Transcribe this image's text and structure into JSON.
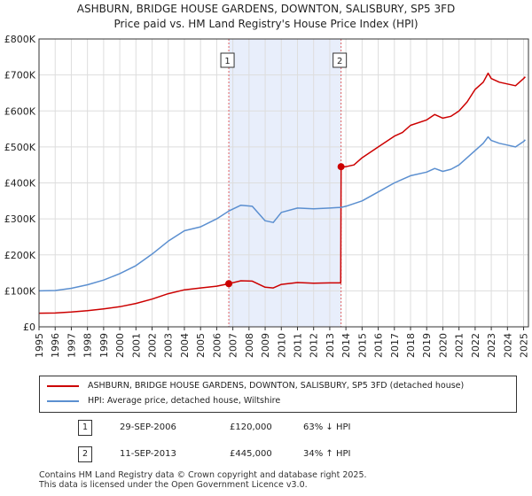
{
  "title_line1": "ASHBURN, BRIDGE HOUSE GARDENS, DOWNTON, SALISBURY, SP5 3FD",
  "title_line2": "Price paid vs. HM Land Registry's House Price Index (HPI)",
  "chart_data": {
    "type": "line",
    "title": "ASHBURN, BRIDGE HOUSE GARDENS, DOWNTON, SALISBURY, SP5 3FD",
    "subtitle": "Price paid vs. HM Land Registry's House Price Index (HPI)",
    "xlim": [
      1995,
      2025.3
    ],
    "ylim": [
      0,
      800000
    ],
    "y_ticks": [
      0,
      100000,
      200000,
      300000,
      400000,
      500000,
      600000,
      700000,
      800000
    ],
    "y_tick_labels": [
      "£0",
      "£100K",
      "£200K",
      "£300K",
      "£400K",
      "£500K",
      "£600K",
      "£700K",
      "£800K"
    ],
    "x_ticks": [
      1995,
      1996,
      1997,
      1998,
      1999,
      2000,
      2001,
      2002,
      2003,
      2004,
      2005,
      2006,
      2007,
      2008,
      2009,
      2010,
      2011,
      2012,
      2013,
      2014,
      2015,
      2016,
      2017,
      2018,
      2019,
      2020,
      2021,
      2022,
      2023,
      2024,
      2025
    ],
    "x_tick_labels": [
      "1995",
      "1996",
      "1997",
      "1998",
      "1999",
      "2000",
      "2001",
      "2002",
      "2003",
      "2004",
      "2005",
      "2006",
      "2007",
      "2008",
      "2009",
      "2010",
      "2011",
      "2012",
      "2013",
      "2014",
      "2015",
      "2016",
      "2017",
      "2018",
      "2019",
      "2020",
      "2021",
      "2022",
      "2023",
      "2024",
      "2025"
    ],
    "grid": true,
    "shaded_region": [
      2006.75,
      2013.7
    ],
    "series": [
      {
        "name": "ASHBURN, BRIDGE HOUSE GARDENS, DOWNTON, SALISBURY, SP5 3FD (detached house)",
        "color": "#cc0000",
        "x": [
          1995,
          1996,
          1997,
          1998,
          1999,
          2000,
          2001,
          2002,
          2003,
          2004,
          2005,
          2006,
          2006.75,
          2007.5,
          2008.2,
          2009,
          2009.5,
          2010,
          2011,
          2012,
          2013,
          2013.68,
          2013.7,
          2014,
          2014.5,
          2015,
          2016,
          2017,
          2017.5,
          2018,
          2019,
          2019.5,
          2020,
          2020.5,
          2021,
          2021.5,
          2022,
          2022.5,
          2022.8,
          2023,
          2023.5,
          2024,
          2024.5,
          2025,
          2025.1
        ],
        "values": [
          38000,
          38500,
          41000,
          45000,
          50000,
          56000,
          65000,
          77000,
          92000,
          103000,
          108000,
          113000,
          120000,
          128000,
          127000,
          110000,
          108000,
          118000,
          123000,
          121000,
          122000,
          122000,
          445000,
          445000,
          450000,
          470000,
          500000,
          530000,
          540000,
          560000,
          575000,
          590000,
          580000,
          585000,
          600000,
          625000,
          660000,
          680000,
          705000,
          690000,
          680000,
          675000,
          670000,
          690000,
          695000
        ]
      },
      {
        "name": "HPI: Average price, detached house, Wiltshire",
        "color": "#5b8fd0",
        "x": [
          1995,
          1996,
          1997,
          1998,
          1999,
          2000,
          2001,
          2002,
          2003,
          2004,
          2005,
          2006,
          2006.75,
          2007.5,
          2008.2,
          2009,
          2009.5,
          2010,
          2011,
          2012,
          2013,
          2013.7,
          2014,
          2015,
          2016,
          2017,
          2017.5,
          2018,
          2019,
          2019.5,
          2020,
          2020.5,
          2021,
          2021.5,
          2022,
          2022.5,
          2022.8,
          2023,
          2023.5,
          2024,
          2024.5,
          2025,
          2025.1
        ],
        "values": [
          100000,
          101000,
          107000,
          117000,
          130000,
          148000,
          170000,
          202000,
          238000,
          267000,
          278000,
          300000,
          322000,
          338000,
          335000,
          295000,
          290000,
          318000,
          330000,
          328000,
          330000,
          332000,
          335000,
          350000,
          375000,
          400000,
          410000,
          420000,
          430000,
          440000,
          432000,
          438000,
          450000,
          470000,
          490000,
          510000,
          528000,
          518000,
          510000,
          505000,
          500000,
          515000,
          520000
        ]
      }
    ],
    "annotations": [
      {
        "label": "1",
        "x": 2006.75,
        "value": 120000
      },
      {
        "label": "2",
        "x": 2013.7,
        "value": 445000
      }
    ]
  },
  "legend": {
    "items": [
      {
        "label": "ASHBURN, BRIDGE HOUSE GARDENS, DOWNTON, SALISBURY, SP5 3FD (detached house)",
        "color": "#cc0000"
      },
      {
        "label": "HPI: Average price, detached house, Wiltshire",
        "color": "#5b8fd0"
      }
    ]
  },
  "table": {
    "rows": [
      {
        "num": "1",
        "date": "29-SEP-2006",
        "price": "£120,000",
        "hpi": "63% ↓ HPI"
      },
      {
        "num": "2",
        "date": "11-SEP-2013",
        "price": "£445,000",
        "hpi": "34% ↑ HPI"
      }
    ]
  },
  "footer": {
    "line1": "Contains HM Land Registry data © Crown copyright and database right 2025.",
    "line2": "This data is licensed under the Open Government Licence v3.0."
  }
}
